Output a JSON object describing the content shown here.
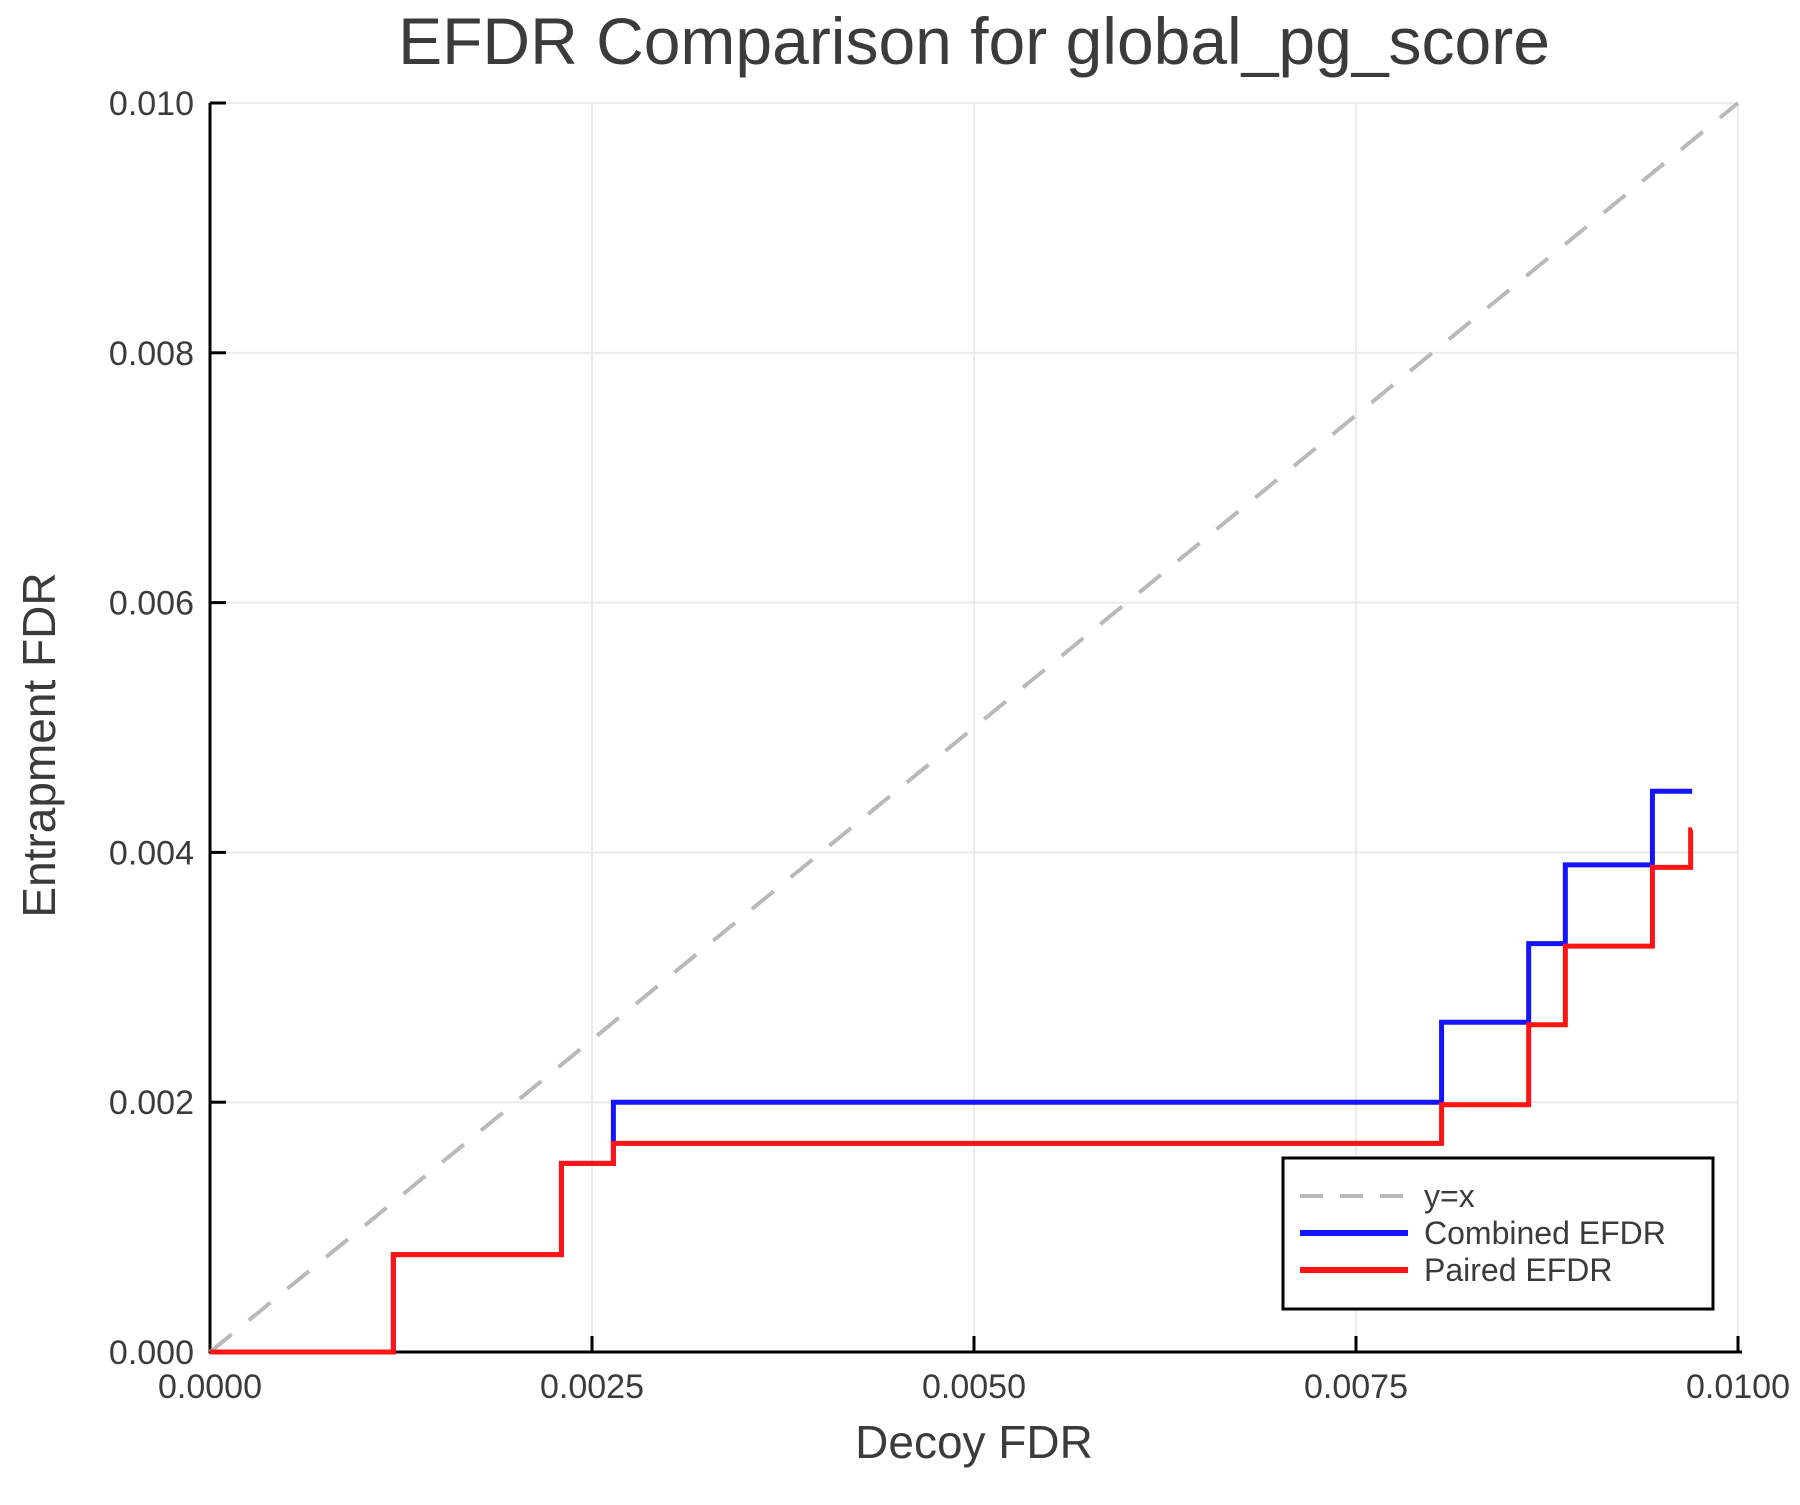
{
  "chart_data": {
    "type": "line",
    "subtype": "step",
    "title": "EFDR Comparison for global_pg_score",
    "xlabel": "Decoy FDR",
    "ylabel": "Entrapment FDR",
    "xlim": [
      0.0,
      0.01
    ],
    "ylim": [
      0.0,
      0.01
    ],
    "x_ticks": {
      "values": [
        0.0,
        0.0025,
        0.005,
        0.0075,
        0.01
      ],
      "labels": [
        "0.0000",
        "0.0025",
        "0.0050",
        "0.0075",
        "0.0100"
      ]
    },
    "y_ticks": {
      "values": [
        0.0,
        0.002,
        0.004,
        0.006,
        0.008,
        0.01
      ],
      "labels": [
        "0.000",
        "0.002",
        "0.004",
        "0.006",
        "0.008",
        "0.010"
      ]
    },
    "grid": true,
    "legend": {
      "position": "lower right",
      "items": [
        {
          "label": "y=x",
          "color": "#b9b9b9",
          "dashed": true
        },
        {
          "label": "Combined EFDR",
          "color": "#1414ff",
          "dashed": false
        },
        {
          "label": "Paired EFDR",
          "color": "#ff1414",
          "dashed": false
        }
      ]
    },
    "reference_line": {
      "label": "y=x",
      "from": [
        0.0,
        0.0
      ],
      "to": [
        0.01,
        0.01
      ],
      "style": "dashed",
      "color": "#b9b9b9"
    },
    "series": [
      {
        "name": "Combined EFDR",
        "color": "#1414ff",
        "draw_order": 1,
        "steps": [
          [
            0.0,
            0.0
          ],
          [
            0.0012,
            0.00078
          ],
          [
            0.0023,
            0.00151
          ],
          [
            0.00264,
            0.002
          ],
          [
            0.00806,
            0.00264
          ],
          [
            0.00863,
            0.00327
          ],
          [
            0.00887,
            0.0039
          ],
          [
            0.00944,
            0.00449
          ]
        ],
        "x_end": 0.0097
      },
      {
        "name": "Paired EFDR",
        "color": "#ff1414",
        "draw_order": 2,
        "steps": [
          [
            0.0,
            0.0
          ],
          [
            0.0012,
            0.00078
          ],
          [
            0.0023,
            0.00151
          ],
          [
            0.00264,
            0.00167
          ],
          [
            0.00806,
            0.00198
          ],
          [
            0.00863,
            0.00262
          ],
          [
            0.00887,
            0.00325
          ],
          [
            0.00944,
            0.00388
          ],
          [
            0.00969,
            0.00418
          ]
        ],
        "x_end": 0.0097
      }
    ],
    "style_colors": {
      "grid": "#ebebeb",
      "axis": "#000000",
      "text": "#3b3b3b"
    }
  }
}
